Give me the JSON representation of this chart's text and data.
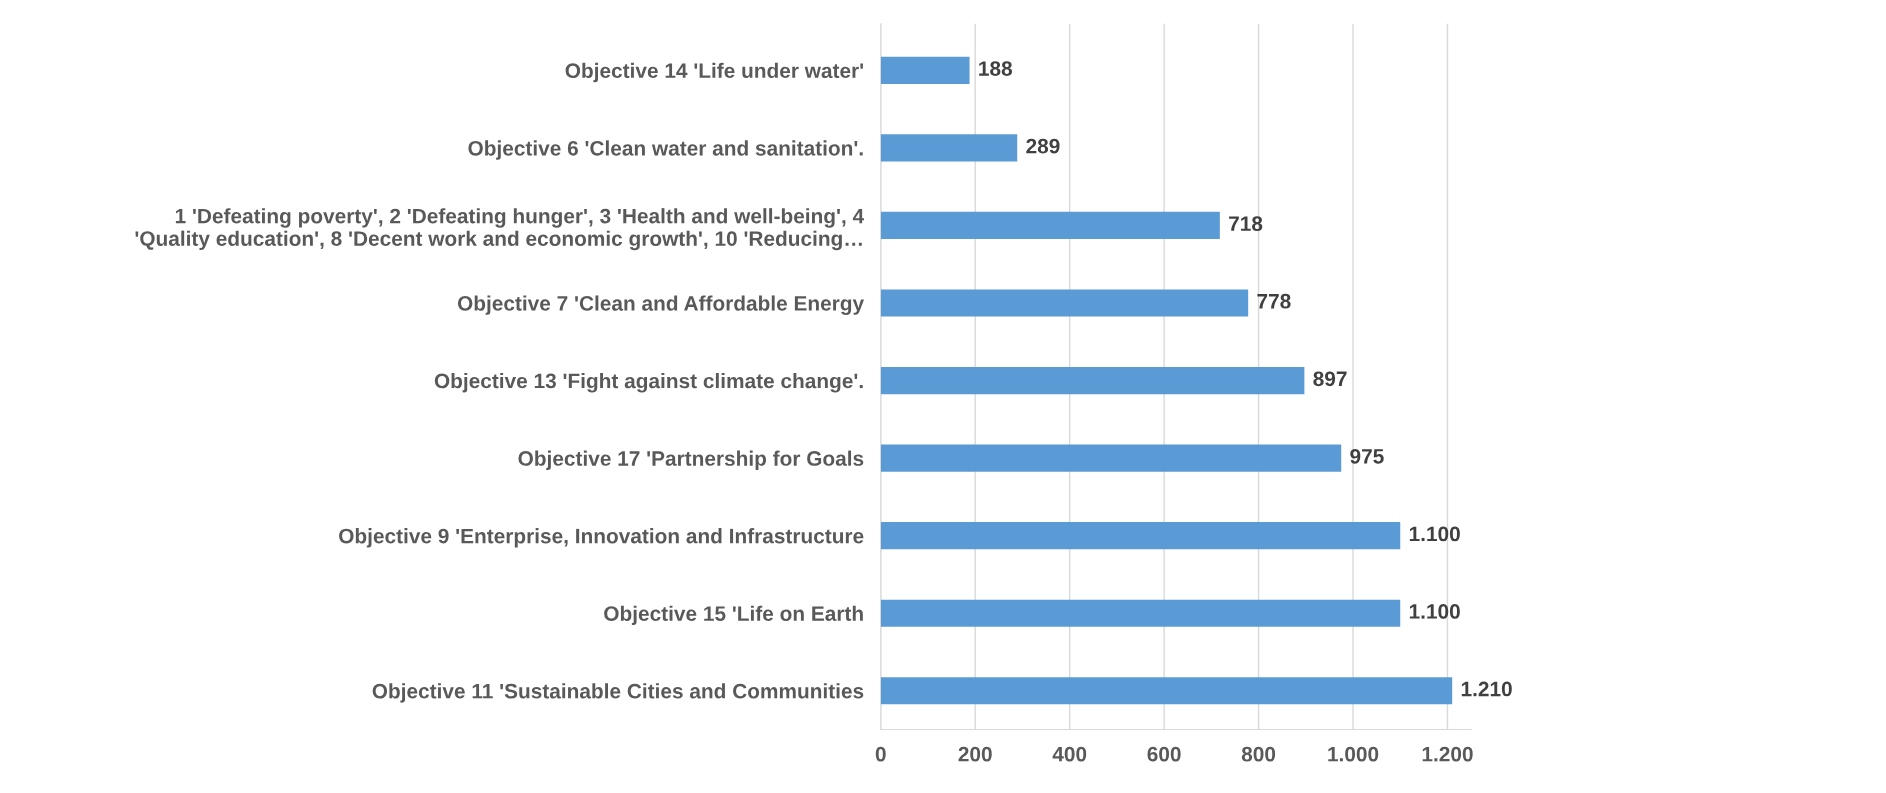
{
  "chart_data": {
    "type": "bar",
    "orientation": "horizontal",
    "categories": [
      "Objective 14 'Life under water'",
      "Objective 6 'Clean water and sanitation'.",
      "1 'Defeating poverty', 2 'Defeating hunger', 3 'Health and well-being', 4\n'Quality education', 8 'Decent work and economic growth', 10 'Reducing…",
      "Objective 7 'Clean and Affordable Energy",
      "Objective 13 'Fight against climate change'.",
      "Objective 17 'Partnership for Goals",
      "Objective 9 'Enterprise, Innovation and Infrastructure",
      "Objective 15 'Life on Earth",
      "Objective 11 'Sustainable Cities and Communities"
    ],
    "values": [
      188,
      289,
      718,
      778,
      897,
      975,
      1100,
      1100,
      1210
    ],
    "value_labels": [
      "188",
      "289",
      "718",
      "778",
      "897",
      "975",
      "1.100",
      "1.100",
      "1.210"
    ],
    "color": "#5b9bd5",
    "xlim": [
      0,
      1250
    ],
    "xticks": [
      0,
      200,
      400,
      600,
      800,
      {
        "value": 1000,
        "label": "1.000"
      },
      {
        "value": 1200,
        "label": "1.200"
      }
    ],
    "grid": "x"
  }
}
